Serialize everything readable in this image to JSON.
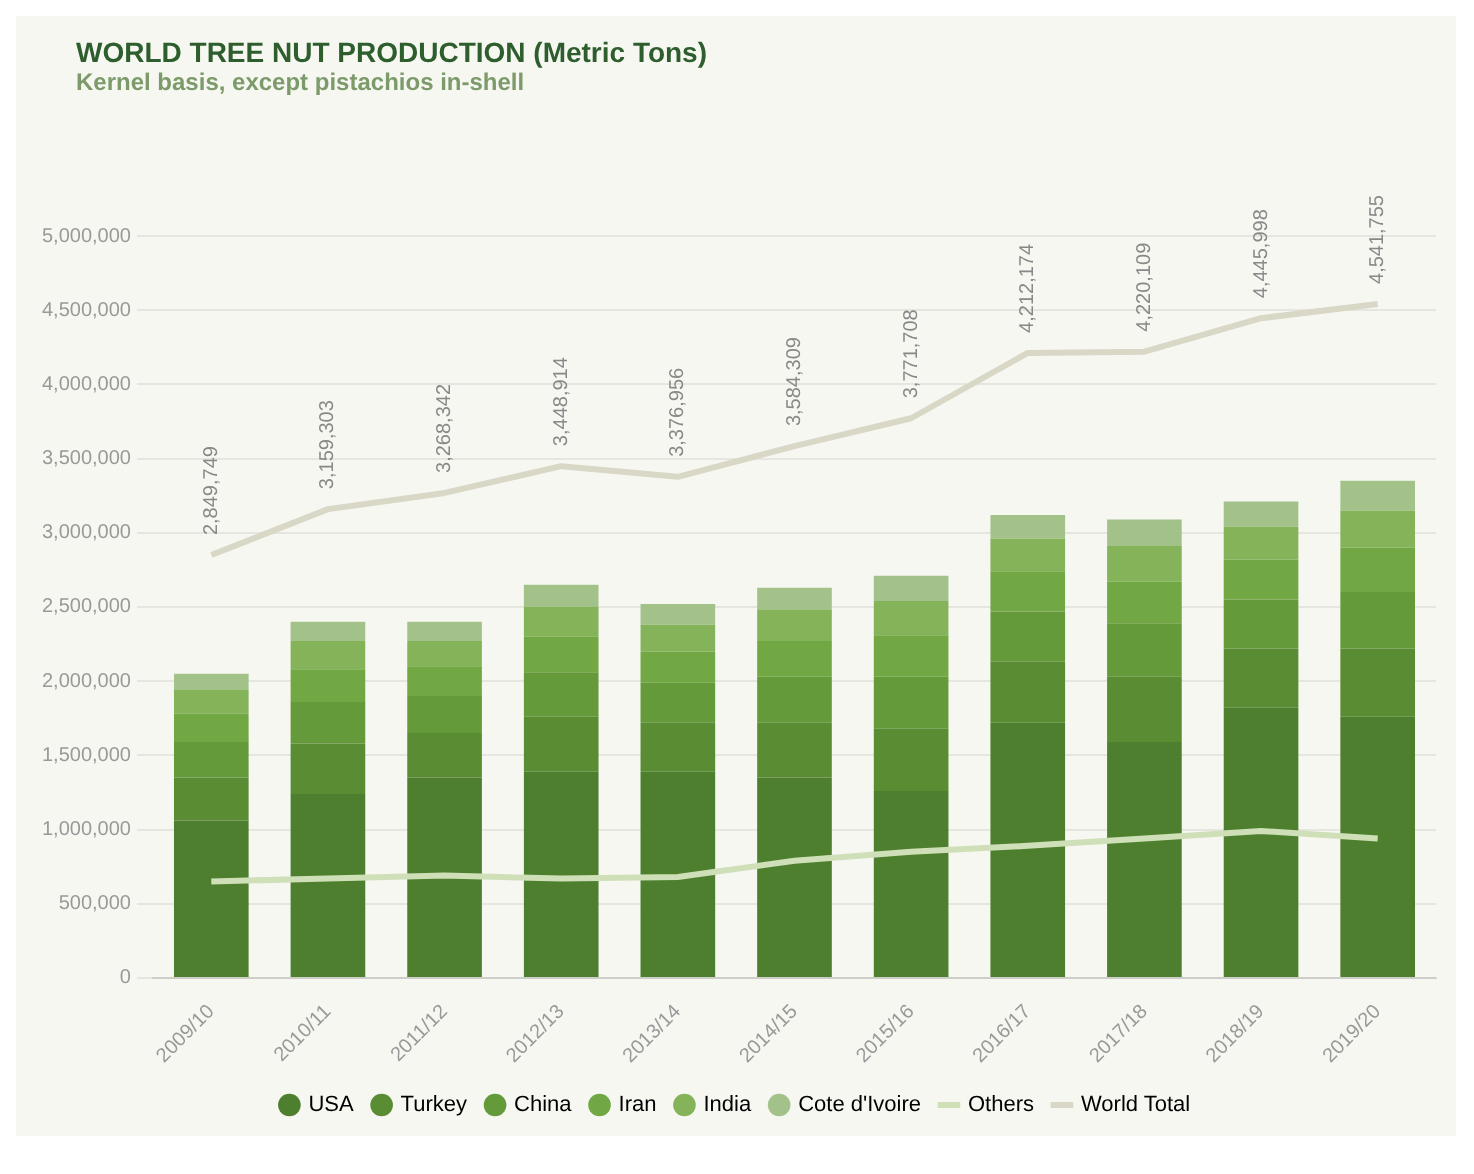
{
  "chart_data": {
    "type": "bar",
    "title": "WORLD TREE NUT PRODUCTION (Metric Tons)",
    "subtitle": "Kernel basis, except pistachios in-shell",
    "categories": [
      "2009/10",
      "2010/11",
      "2011/12",
      "2012/13",
      "2013/14",
      "2014/15",
      "2015/16",
      "2016/17",
      "2017/18",
      "2018/19",
      "2019/20"
    ],
    "stacked": true,
    "series": [
      {
        "name": "USA",
        "color": "#4e7f2e",
        "values": [
          1060000,
          1240000,
          1350000,
          1390000,
          1390000,
          1350000,
          1260000,
          1720000,
          1590000,
          1820000,
          1760000
        ]
      },
      {
        "name": "Turkey",
        "color": "#5a8c34",
        "values": [
          290000,
          340000,
          300000,
          370000,
          330000,
          370000,
          420000,
          410000,
          440000,
          400000,
          460000
        ]
      },
      {
        "name": "China",
        "color": "#659a3a",
        "values": [
          240000,
          280000,
          250000,
          300000,
          270000,
          310000,
          350000,
          340000,
          360000,
          330000,
          380000
        ]
      },
      {
        "name": "Iran",
        "color": "#72a843",
        "values": [
          190000,
          220000,
          200000,
          240000,
          210000,
          240000,
          280000,
          270000,
          280000,
          270000,
          300000
        ]
      },
      {
        "name": "India",
        "color": "#85b35a",
        "values": [
          160000,
          190000,
          170000,
          200000,
          180000,
          210000,
          230000,
          220000,
          240000,
          220000,
          250000
        ]
      },
      {
        "name": "Cote d'Ivoire",
        "color": "#a3c28a",
        "values": [
          110000,
          130000,
          130000,
          150000,
          140000,
          150000,
          170000,
          160000,
          180000,
          170000,
          200000
        ]
      },
      {
        "name": "Others",
        "type": "line",
        "color": "#cfe0b8",
        "values": [
          650000,
          670000,
          690000,
          670000,
          680000,
          790000,
          850000,
          890000,
          940000,
          990000,
          940000
        ]
      },
      {
        "name": "World Total",
        "type": "line",
        "color": "#d9d7c6",
        "values": [
          2849749,
          3159303,
          3268342,
          3448914,
          3376956,
          3584309,
          3771708,
          4212174,
          4220109,
          4445998,
          4541755
        ],
        "value_labels": [
          "2,849,749",
          "3,159,303",
          "3,268,342",
          "3,448,914",
          "3,376,956",
          "3,584,309",
          "3,771,708",
          "4,212,174",
          "4,220,109",
          "4,445,998",
          "4,541,755"
        ]
      }
    ],
    "ylim": [
      0,
      5000000
    ],
    "yticks": [
      0,
      {
        "value": 500000,
        "label": "500,000"
      },
      {
        "value": 1000000,
        "label": "1,000,000"
      },
      {
        "value": 1500000,
        "label": "1,500,000"
      },
      {
        "value": 2000000,
        "label": "2,000,000"
      },
      {
        "value": 2500000,
        "label": "2,500,000"
      },
      {
        "value": 3000000,
        "label": "3,000,000"
      },
      {
        "value": 3500000,
        "label": "3,500,000"
      },
      {
        "value": 4000000,
        "label": "4,000,000"
      },
      {
        "value": 4500000,
        "label": "4,500,000"
      },
      {
        "value": 5000000,
        "label": "5,000,000"
      }
    ],
    "grid": "y",
    "legend": "bottom",
    "marker": "none"
  }
}
